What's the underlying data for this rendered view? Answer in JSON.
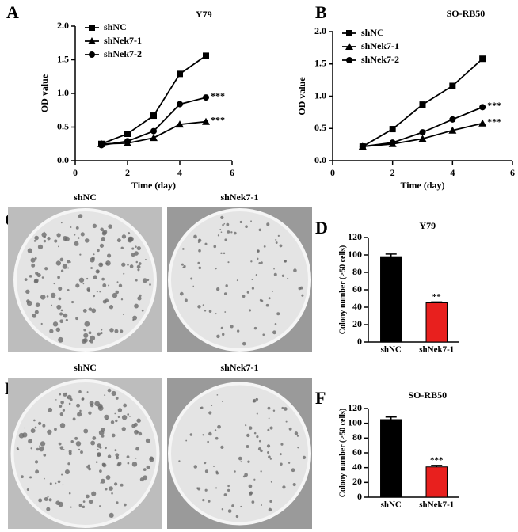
{
  "chart_data": [
    {
      "type": "line",
      "panel": "A",
      "title": "Y79",
      "xlabel": "Time (day)",
      "ylabel": "OD value",
      "x": [
        1,
        2,
        3,
        4,
        5
      ],
      "xlim": [
        0,
        6
      ],
      "xticks": [
        0,
        2,
        4,
        6
      ],
      "ylim": [
        0,
        2
      ],
      "yticks": [
        {
          "value": 0,
          "label": "0.0"
        },
        0.5,
        {
          "value": 1,
          "label": "1.0"
        },
        1.5,
        {
          "value": 2,
          "label": "2.0"
        }
      ],
      "legend": "upper left",
      "series": [
        {
          "name": "shNC",
          "color": "#000000",
          "marker": "square",
          "values": [
            0.25,
            0.4,
            0.67,
            1.29,
            1.56
          ]
        },
        {
          "name": "shNek7-1",
          "color": "#000000",
          "marker": "triangle",
          "values": [
            0.25,
            0.26,
            0.34,
            0.54,
            0.58
          ],
          "annotation": "***"
        },
        {
          "name": "shNek7-2",
          "color": "#000000",
          "marker": "circle",
          "values": [
            0.23,
            0.29,
            0.44,
            0.84,
            0.94
          ],
          "annotation": "***"
        }
      ]
    },
    {
      "type": "line",
      "panel": "B",
      "title": "SO-RB50",
      "xlabel": "Time (day)",
      "ylabel": "OD value",
      "x": [
        1,
        2,
        3,
        4,
        5
      ],
      "xlim": [
        0,
        6
      ],
      "xticks": [
        0,
        2,
        4,
        6
      ],
      "ylim": [
        0,
        2
      ],
      "yticks": [
        {
          "value": 0,
          "label": "0.0"
        },
        0.5,
        {
          "value": 1,
          "label": "1.0"
        },
        1.5,
        {
          "value": 2,
          "label": "2.0"
        }
      ],
      "legend": "upper left",
      "series": [
        {
          "name": "shNC",
          "color": "#000000",
          "marker": "square",
          "values": [
            0.22,
            0.49,
            0.87,
            1.16,
            1.58
          ]
        },
        {
          "name": "shNek7-1",
          "color": "#000000",
          "marker": "triangle",
          "values": [
            0.22,
            0.26,
            0.34,
            0.47,
            0.58
          ],
          "annotation": "***"
        },
        {
          "name": "shNek7-2",
          "color": "#000000",
          "marker": "circle",
          "values": [
            0.22,
            0.28,
            0.44,
            0.64,
            0.83
          ],
          "annotation": "***"
        }
      ]
    },
    {
      "type": "bar",
      "panel": "D",
      "title": "Y79",
      "ylabel": "Colony number (>50 cells)",
      "categories": [
        "shNC",
        "shNek7-1"
      ],
      "values": [
        98,
        45
      ],
      "errors": [
        3,
        1
      ],
      "colors": [
        "#000000",
        "#e8201e"
      ],
      "annotations": [
        {
          "category": "shNek7-1",
          "text": "**"
        }
      ],
      "ylim": [
        0,
        120
      ],
      "yticks": [
        0,
        20,
        40,
        60,
        80,
        100,
        120
      ]
    },
    {
      "type": "bar",
      "panel": "F",
      "title": "SO-RB50",
      "ylabel": "Colony number (>50 cells)",
      "categories": [
        "shNC",
        "shNek7-1"
      ],
      "values": [
        105,
        41
      ],
      "errors": [
        3.5,
        2
      ],
      "colors": [
        "#000000",
        "#e8201e"
      ],
      "annotations": [
        {
          "category": "shNek7-1",
          "text": "***"
        }
      ],
      "ylim": [
        0,
        120
      ],
      "yticks": [
        0,
        20,
        40,
        60,
        80,
        100,
        120
      ]
    }
  ],
  "photo_panels": [
    {
      "panel": "C",
      "labels": [
        "shNC",
        "shNek7-1"
      ]
    },
    {
      "panel": "E",
      "labels": [
        "shNC",
        "shNek7-1"
      ]
    }
  ]
}
